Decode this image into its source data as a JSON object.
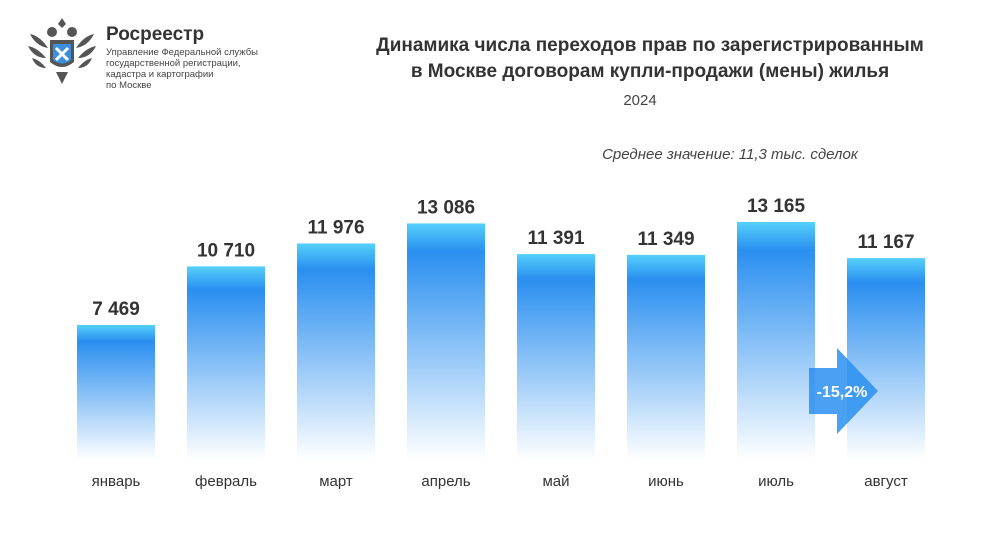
{
  "header": {
    "brand": "Росреестр",
    "brand_subtitle_lines": [
      "Управление Федеральной службы",
      "государственной регистрации,",
      "кадастра и картографии",
      "по Москве"
    ]
  },
  "chart_data": {
    "type": "bar",
    "title_lines": [
      "Динамика числа переходов прав по зарегистрированным",
      "в Москве договорам купли-продажи (мены) жилья"
    ],
    "subtitle": "2024",
    "annotation": "Среднее значение: 11,3 тыс. сделок",
    "categories": [
      "январь",
      "февраль",
      "март",
      "апрель",
      "май",
      "июнь",
      "июль",
      "август"
    ],
    "values": [
      7469,
      10710,
      11976,
      13086,
      11391,
      11349,
      13165,
      11167
    ],
    "value_labels": [
      "7 469",
      "10 710",
      "11 976",
      "13 086",
      "11 391",
      "11 349",
      "13 165",
      "11 167"
    ],
    "change_label": "-15,2%",
    "ylim": [
      0,
      13165
    ],
    "grid": false,
    "colors": {
      "bar_top": "#55d0fb",
      "bar_mid": "#2a8ff0",
      "bar_bottom": "#ffffff",
      "arrow": "#2a8ff0"
    }
  }
}
